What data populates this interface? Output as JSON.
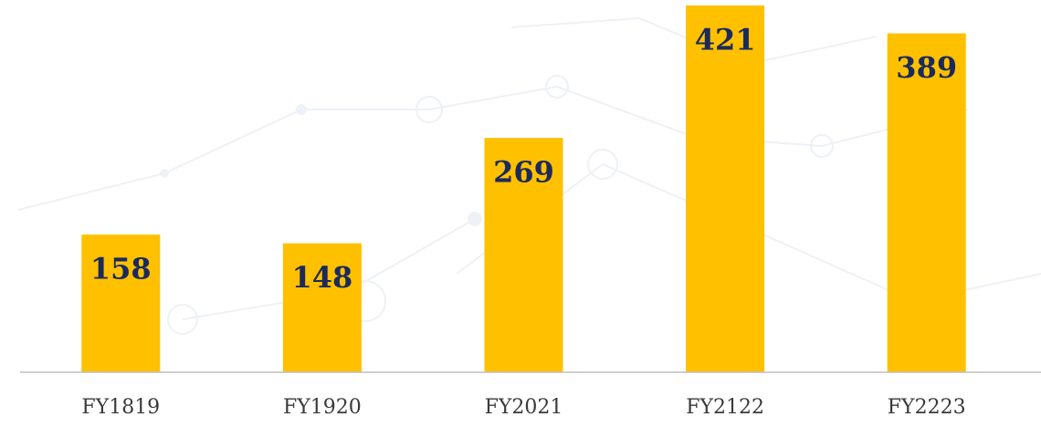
{
  "chart_data": {
    "type": "bar",
    "categories": [
      "FY1819",
      "FY1920",
      "FY2021",
      "FY2122",
      "FY2223"
    ],
    "values": [
      158,
      148,
      269,
      421,
      389
    ],
    "color": "#ffc000"
  }
}
